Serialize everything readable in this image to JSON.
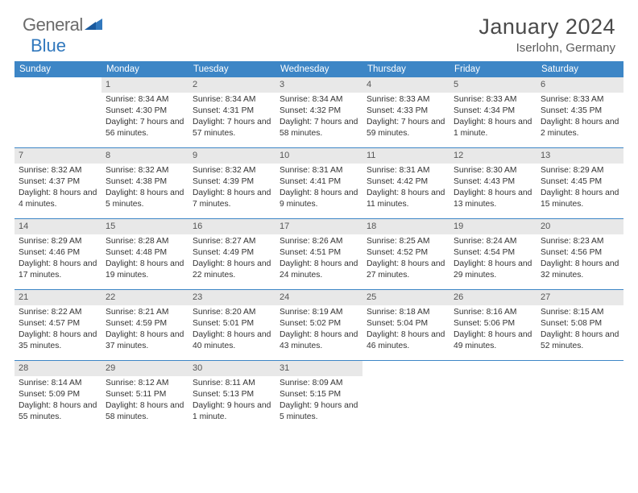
{
  "logo": {
    "text1": "General",
    "text2": "Blue"
  },
  "title": "January 2024",
  "location": "Iserlohn, Germany",
  "colors": {
    "header_bg": "#3d86c6",
    "header_text": "#ffffff",
    "daynum_bg": "#e8e8e8",
    "daynum_text": "#555555",
    "body_text": "#333333",
    "title_text": "#4a4a4a",
    "logo_gray": "#6b6b6b",
    "logo_blue": "#3178bd",
    "divider": "#3d86c6"
  },
  "typography": {
    "title_fontsize": 27,
    "location_fontsize": 15,
    "weekday_fontsize": 11.5,
    "daynum_fontsize": 11,
    "cell_fontsize": 10.3
  },
  "weekdays": [
    "Sunday",
    "Monday",
    "Tuesday",
    "Wednesday",
    "Thursday",
    "Friday",
    "Saturday"
  ],
  "weeks": [
    [
      null,
      {
        "n": "1",
        "sr": "8:34 AM",
        "ss": "4:30 PM",
        "dl": "7 hours and 56 minutes."
      },
      {
        "n": "2",
        "sr": "8:34 AM",
        "ss": "4:31 PM",
        "dl": "7 hours and 57 minutes."
      },
      {
        "n": "3",
        "sr": "8:34 AM",
        "ss": "4:32 PM",
        "dl": "7 hours and 58 minutes."
      },
      {
        "n": "4",
        "sr": "8:33 AM",
        "ss": "4:33 PM",
        "dl": "7 hours and 59 minutes."
      },
      {
        "n": "5",
        "sr": "8:33 AM",
        "ss": "4:34 PM",
        "dl": "8 hours and 1 minute."
      },
      {
        "n": "6",
        "sr": "8:33 AM",
        "ss": "4:35 PM",
        "dl": "8 hours and 2 minutes."
      }
    ],
    [
      {
        "n": "7",
        "sr": "8:32 AM",
        "ss": "4:37 PM",
        "dl": "8 hours and 4 minutes."
      },
      {
        "n": "8",
        "sr": "8:32 AM",
        "ss": "4:38 PM",
        "dl": "8 hours and 5 minutes."
      },
      {
        "n": "9",
        "sr": "8:32 AM",
        "ss": "4:39 PM",
        "dl": "8 hours and 7 minutes."
      },
      {
        "n": "10",
        "sr": "8:31 AM",
        "ss": "4:41 PM",
        "dl": "8 hours and 9 minutes."
      },
      {
        "n": "11",
        "sr": "8:31 AM",
        "ss": "4:42 PM",
        "dl": "8 hours and 11 minutes."
      },
      {
        "n": "12",
        "sr": "8:30 AM",
        "ss": "4:43 PM",
        "dl": "8 hours and 13 minutes."
      },
      {
        "n": "13",
        "sr": "8:29 AM",
        "ss": "4:45 PM",
        "dl": "8 hours and 15 minutes."
      }
    ],
    [
      {
        "n": "14",
        "sr": "8:29 AM",
        "ss": "4:46 PM",
        "dl": "8 hours and 17 minutes."
      },
      {
        "n": "15",
        "sr": "8:28 AM",
        "ss": "4:48 PM",
        "dl": "8 hours and 19 minutes."
      },
      {
        "n": "16",
        "sr": "8:27 AM",
        "ss": "4:49 PM",
        "dl": "8 hours and 22 minutes."
      },
      {
        "n": "17",
        "sr": "8:26 AM",
        "ss": "4:51 PM",
        "dl": "8 hours and 24 minutes."
      },
      {
        "n": "18",
        "sr": "8:25 AM",
        "ss": "4:52 PM",
        "dl": "8 hours and 27 minutes."
      },
      {
        "n": "19",
        "sr": "8:24 AM",
        "ss": "4:54 PM",
        "dl": "8 hours and 29 minutes."
      },
      {
        "n": "20",
        "sr": "8:23 AM",
        "ss": "4:56 PM",
        "dl": "8 hours and 32 minutes."
      }
    ],
    [
      {
        "n": "21",
        "sr": "8:22 AM",
        "ss": "4:57 PM",
        "dl": "8 hours and 35 minutes."
      },
      {
        "n": "22",
        "sr": "8:21 AM",
        "ss": "4:59 PM",
        "dl": "8 hours and 37 minutes."
      },
      {
        "n": "23",
        "sr": "8:20 AM",
        "ss": "5:01 PM",
        "dl": "8 hours and 40 minutes."
      },
      {
        "n": "24",
        "sr": "8:19 AM",
        "ss": "5:02 PM",
        "dl": "8 hours and 43 minutes."
      },
      {
        "n": "25",
        "sr": "8:18 AM",
        "ss": "5:04 PM",
        "dl": "8 hours and 46 minutes."
      },
      {
        "n": "26",
        "sr": "8:16 AM",
        "ss": "5:06 PM",
        "dl": "8 hours and 49 minutes."
      },
      {
        "n": "27",
        "sr": "8:15 AM",
        "ss": "5:08 PM",
        "dl": "8 hours and 52 minutes."
      }
    ],
    [
      {
        "n": "28",
        "sr": "8:14 AM",
        "ss": "5:09 PM",
        "dl": "8 hours and 55 minutes."
      },
      {
        "n": "29",
        "sr": "8:12 AM",
        "ss": "5:11 PM",
        "dl": "8 hours and 58 minutes."
      },
      {
        "n": "30",
        "sr": "8:11 AM",
        "ss": "5:13 PM",
        "dl": "9 hours and 1 minute."
      },
      {
        "n": "31",
        "sr": "8:09 AM",
        "ss": "5:15 PM",
        "dl": "9 hours and 5 minutes."
      },
      null,
      null,
      null
    ]
  ],
  "labels": {
    "sunrise": "Sunrise:",
    "sunset": "Sunset:",
    "daylight": "Daylight:"
  }
}
